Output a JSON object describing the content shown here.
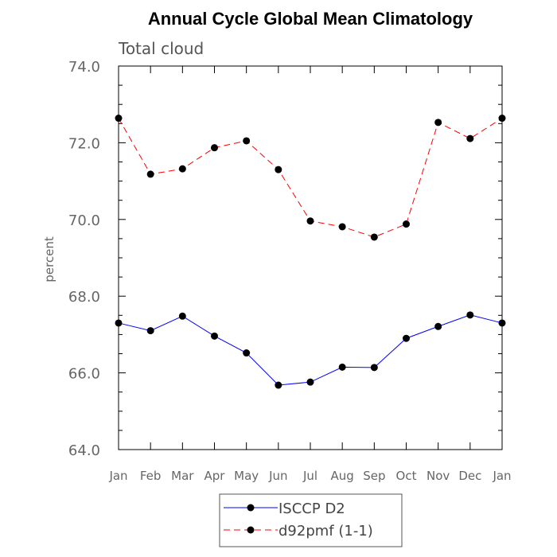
{
  "chart_data": {
    "type": "line",
    "title": "Annual Cycle Global Mean Climatology",
    "subtitle": "Total cloud",
    "xlabel": "",
    "ylabel": "percent",
    "categories": [
      "Jan",
      "Feb",
      "Mar",
      "Apr",
      "May",
      "Jun",
      "Jul",
      "Aug",
      "Sep",
      "Oct",
      "Nov",
      "Dec",
      "Jan"
    ],
    "ylim": [
      64.0,
      74.0
    ],
    "yticks": [
      "64.0",
      "66.0",
      "68.0",
      "70.0",
      "72.0",
      "74.0"
    ],
    "grid": false,
    "legend_position": "bottom-center",
    "series": [
      {
        "name": "ISCCP D2",
        "color": "#0000ff",
        "line_style": "solid",
        "values": [
          67.3,
          67.1,
          67.48,
          66.96,
          66.52,
          65.68,
          65.76,
          66.15,
          66.14,
          66.9,
          67.21,
          67.51,
          67.3
        ]
      },
      {
        "name": "d92pmf (1-1)",
        "color": "#ff0000",
        "line_style": "dashed",
        "values": [
          72.64,
          71.18,
          71.32,
          71.87,
          72.05,
          71.3,
          69.96,
          69.81,
          69.54,
          69.88,
          72.53,
          72.11,
          72.64
        ]
      }
    ]
  }
}
